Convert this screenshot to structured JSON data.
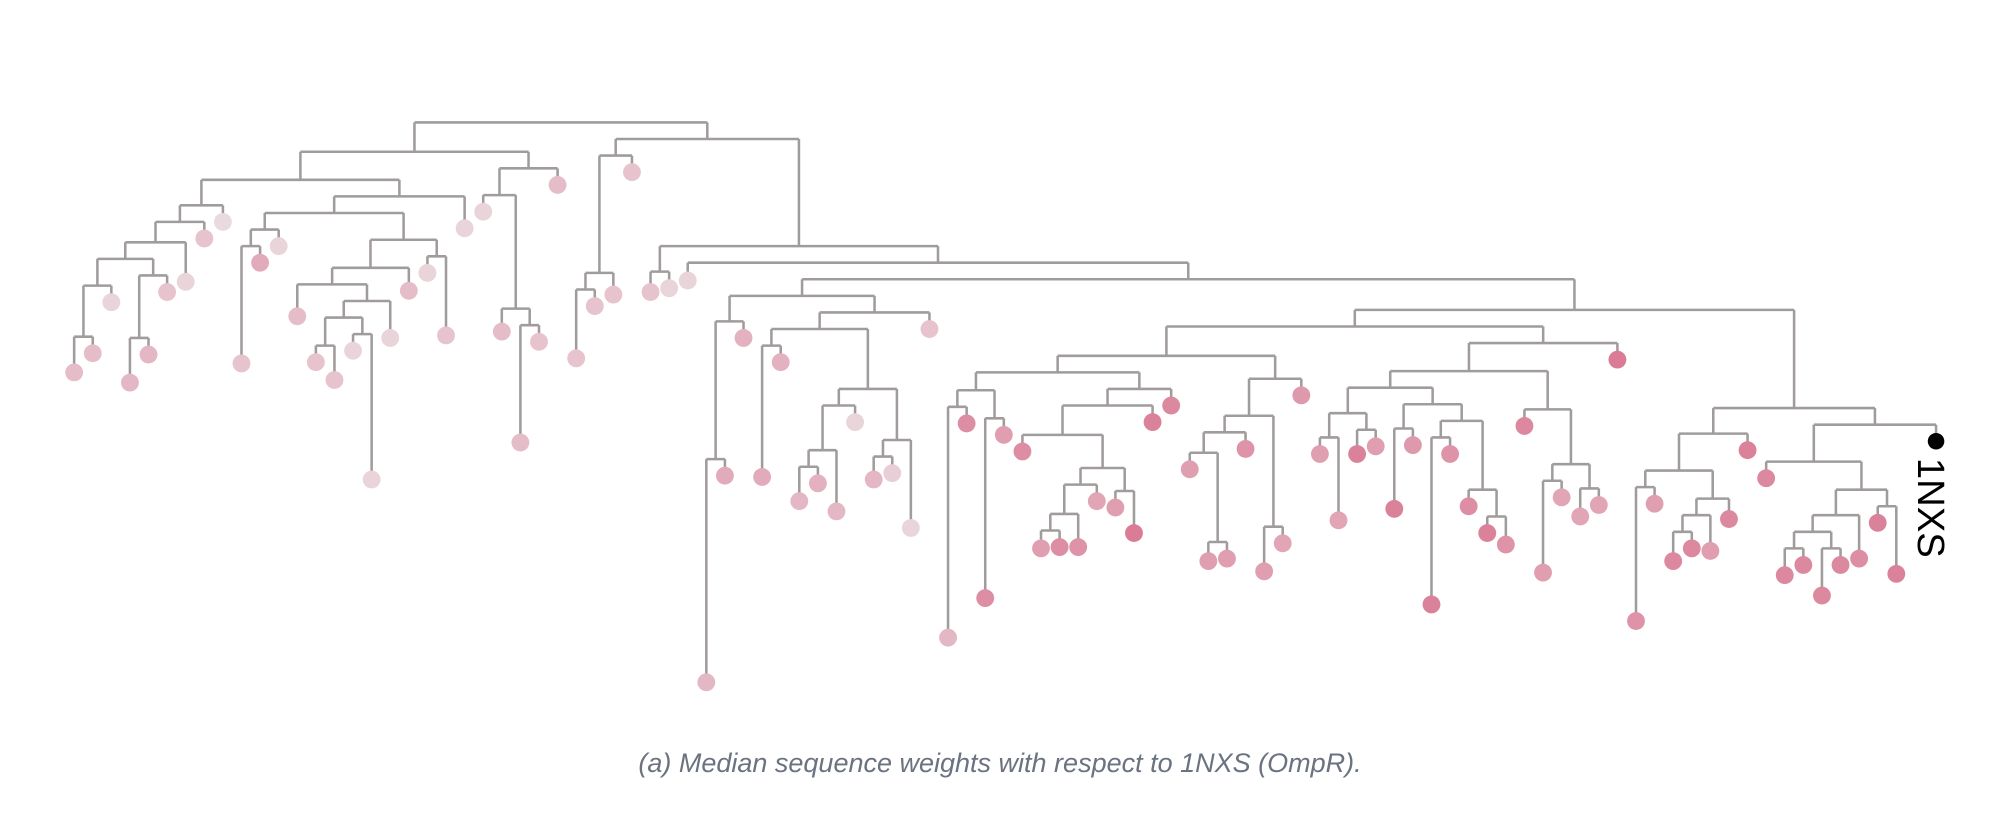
{
  "caption": "(a) Median sequence weights with respect to 1NXS (OmpR).",
  "reference_label": "1NXS",
  "colors": {
    "branch": "#a19c9c",
    "low_weight": "#ece6e8",
    "high_weight": "#d8708d",
    "reference": "#000000"
  },
  "chart_data": {
    "type": "dendrogram",
    "title": "(a) Median sequence weights with respect to 1NXS (OmpR).",
    "reference": "1NXS",
    "leaf_weights": [
      0.35,
      0.35,
      0.15,
      0.4,
      0.4,
      0.3,
      0.15,
      0.3,
      0.1,
      0.3,
      0.5,
      0.15,
      0.35,
      0.3,
      0.3,
      0.15,
      0.15,
      0.15,
      0.35,
      0.15,
      0.3,
      0.15,
      0.15,
      0.35,
      0.35,
      0.3,
      0.35,
      0.3,
      0.3,
      0.3,
      0.3,
      0.3,
      0.15,
      0.15,
      0.4,
      0.5,
      0.45,
      0.5,
      0.45,
      0.4,
      0.45,
      0.4,
      0.15,
      0.4,
      0.2,
      0.15,
      0.3,
      0.4,
      0.75,
      0.75,
      0.6,
      0.75,
      0.6,
      0.75,
      0.7,
      0.55,
      0.6,
      0.9,
      0.85,
      0.8,
      0.6,
      0.6,
      0.6,
      0.7,
      0.6,
      0.55,
      0.65,
      0.6,
      0.55,
      0.85,
      0.6,
      0.85,
      0.65,
      0.85,
      0.7,
      0.75,
      0.85,
      0.7,
      0.8,
      0.6,
      0.55,
      0.55,
      0.55,
      0.9,
      0.7,
      0.6,
      0.8,
      0.8,
      0.6,
      0.8,
      0.85,
      0.8,
      0.8,
      0.8,
      0.8,
      0.8,
      0.75,
      0.85,
      0.85
    ]
  }
}
